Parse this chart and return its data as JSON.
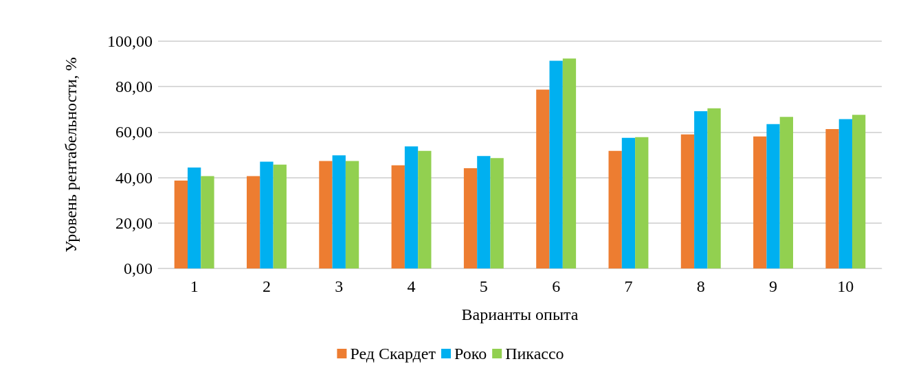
{
  "chart_data": {
    "type": "bar",
    "xlabel": "Варианты опыта",
    "ylabel": "Уровень рентабельности, %",
    "categories": [
      "1",
      "2",
      "3",
      "4",
      "5",
      "6",
      "7",
      "8",
      "9",
      "10"
    ],
    "series": [
      {
        "name": "Ред Скардет",
        "color": "#ed7d31",
        "values": [
          38.7,
          40.6,
          47.3,
          45.4,
          44.1,
          78.7,
          51.7,
          59.0,
          58.1,
          61.3
        ]
      },
      {
        "name": "Роко",
        "color": "#00b0f0",
        "values": [
          44.4,
          47.0,
          49.8,
          53.7,
          49.5,
          91.4,
          57.5,
          69.2,
          63.5,
          65.7
        ]
      },
      {
        "name": "Пикассо",
        "color": "#92d050",
        "values": [
          40.6,
          45.7,
          47.3,
          51.7,
          48.6,
          92.4,
          57.8,
          70.5,
          66.7,
          67.6
        ]
      }
    ],
    "ylim": [
      0,
      100
    ],
    "yticks": [
      {
        "value": 0,
        "label": "0,00"
      },
      {
        "value": 20,
        "label": "20,00"
      },
      {
        "value": 40,
        "label": "40,00"
      },
      {
        "value": 60,
        "label": "60,00"
      },
      {
        "value": 80,
        "label": "80,00"
      },
      {
        "value": 100,
        "label": "100,00"
      }
    ],
    "grid": "y",
    "legend": "bottom"
  }
}
